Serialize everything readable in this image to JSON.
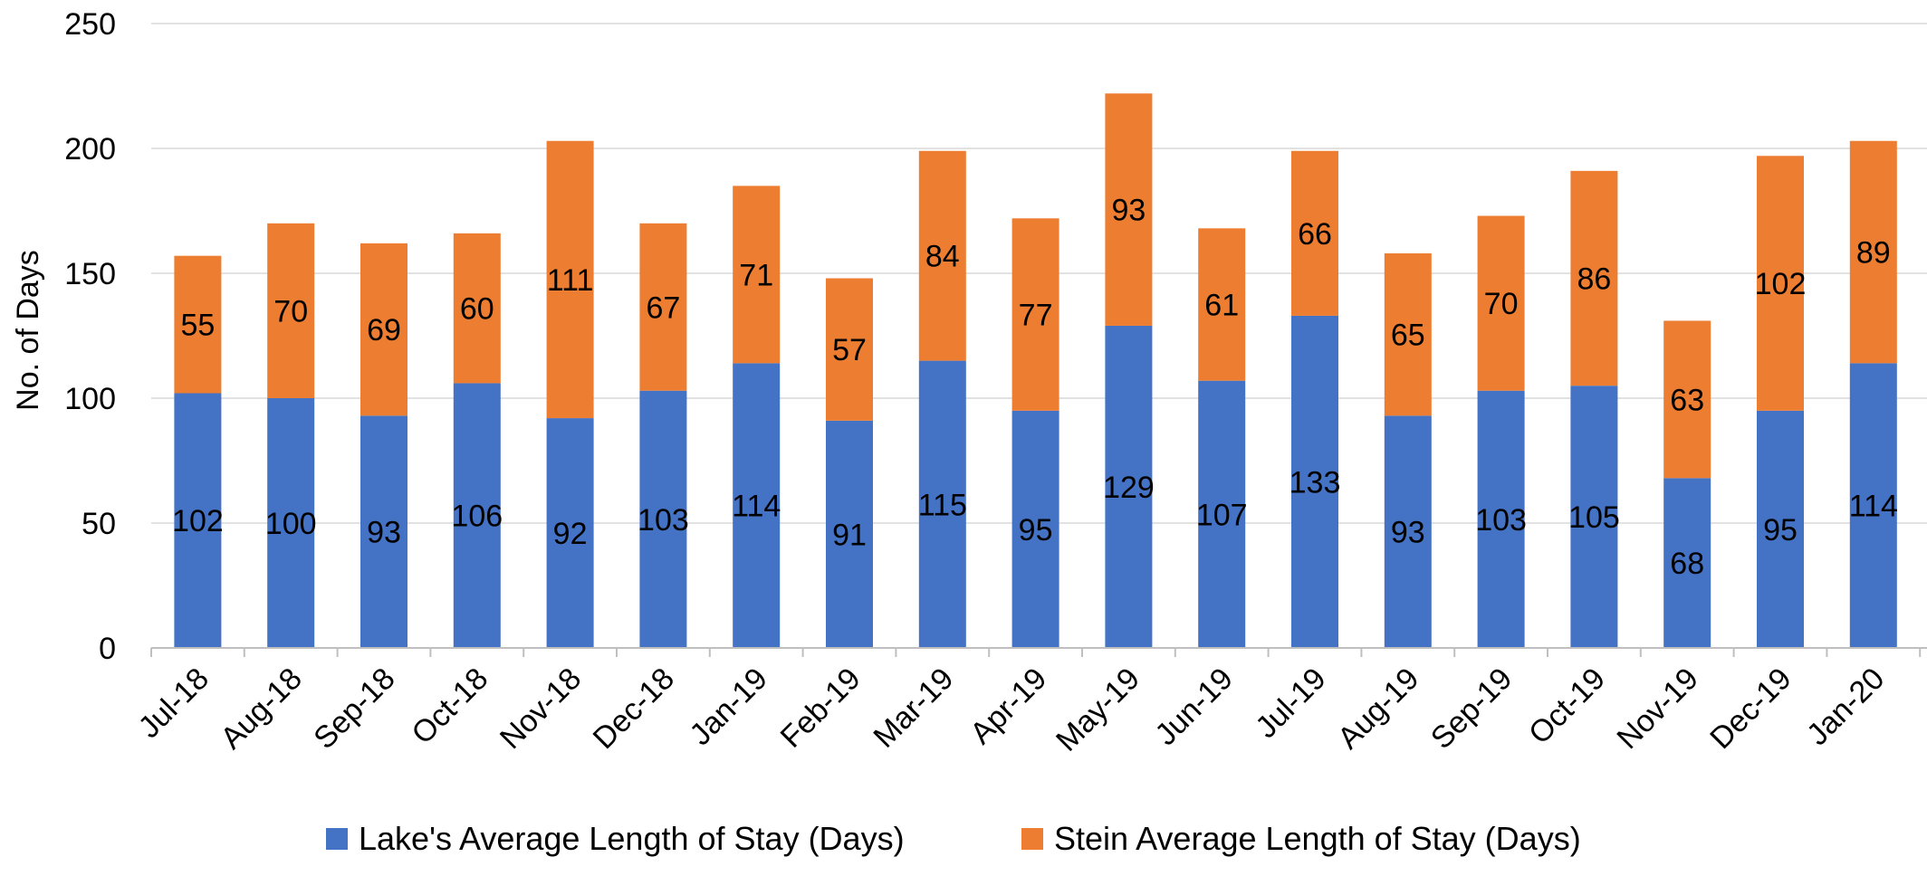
{
  "chart_data": {
    "type": "bar",
    "stacked": true,
    "title": "",
    "xlabel": "",
    "ylabel": "No. of Days",
    "ylim": [
      0,
      250
    ],
    "yticks": [
      0,
      50,
      100,
      150,
      200,
      250
    ],
    "grid": "horizontal",
    "legend_position": "bottom",
    "categories": [
      "Jul-18",
      "Aug-18",
      "Sep-18",
      "Oct-18",
      "Nov-18",
      "Dec-18",
      "Jan-19",
      "Feb-19",
      "Mar-19",
      "Apr-19",
      "May-19",
      "Jun-19",
      "Jul-19",
      "Aug-19",
      "Sep-19",
      "Oct-19",
      "Nov-19",
      "Dec-19",
      "Jan-20"
    ],
    "series": [
      {
        "name": "Lake's Average Length of Stay (Days)",
        "color": "#4472C4",
        "values": [
          102,
          100,
          93,
          106,
          92,
          103,
          114,
          91,
          115,
          95,
          129,
          107,
          133,
          93,
          103,
          105,
          68,
          95,
          114
        ]
      },
      {
        "name": "Stein Average Length of Stay (Days)",
        "color": "#ED7D31",
        "values": [
          55,
          70,
          69,
          60,
          111,
          67,
          71,
          57,
          84,
          77,
          93,
          61,
          66,
          65,
          70,
          86,
          63,
          102,
          89
        ]
      }
    ]
  },
  "colors": {
    "gridline": "#D9D9D9",
    "axis": "#BFBFBF",
    "text": "#000000"
  }
}
